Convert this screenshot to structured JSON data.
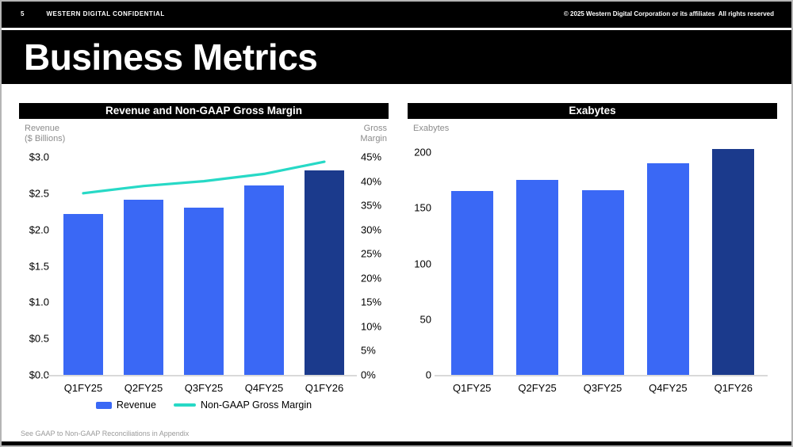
{
  "topbar": {
    "page_number": "5",
    "confidential": "WESTERN DIGITAL CONFIDENTIAL",
    "copyright": "© 2025 Western Digital Corporation or its affiliates  All rights reserved"
  },
  "slide_title": "Business Metrics",
  "footnote": "See GAAP to Non-GAAP Reconciliations in Appendix",
  "colors": {
    "bar_blue": "#3A68F5",
    "bar_navy": "#1B3A8C",
    "line_teal": "#27D9C6",
    "axis_line_gray": "#d9d9d9",
    "caption_gray": "#8c8c8c"
  },
  "chart_data": [
    {
      "type": "bar+line",
      "title": "Revenue and Non-GAAP Gross Margin",
      "categories": [
        "Q1FY25",
        "Q2FY25",
        "Q3FY25",
        "Q4FY25",
        "Q1FY26"
      ],
      "series": [
        {
          "name": "Revenue",
          "type": "bar",
          "unit": "$ Billions",
          "values": [
            2.22,
            2.41,
            2.3,
            2.61,
            2.82
          ]
        },
        {
          "name": "Non-GAAP Gross Margin",
          "type": "line",
          "unit": "%",
          "values": [
            37.5,
            39,
            40,
            41.5,
            44
          ]
        }
      ],
      "highlight_index": 4,
      "left_axis": {
        "label": "Revenue\n($ Billions)",
        "max": 3.0,
        "min": 0,
        "ticks": [
          "$3.0",
          "$2.5",
          "$2.0",
          "$1.5",
          "$1.0",
          "$0.5",
          "$0.0"
        ]
      },
      "right_axis": {
        "label": "Gross\nMargin",
        "max": 45,
        "min": 0,
        "ticks": [
          "45%",
          "40%",
          "35%",
          "30%",
          "25%",
          "20%",
          "15%",
          "10%",
          "5%",
          "0%"
        ]
      },
      "legend": [
        {
          "label": "Revenue",
          "swatch": "bar"
        },
        {
          "label": "Non-GAAP Gross Margin",
          "swatch": "line"
        }
      ],
      "grid": false,
      "legend_position": "bottom"
    },
    {
      "type": "bar",
      "title": "Exabytes",
      "categories": [
        "Q1FY25",
        "Q2FY25",
        "Q3FY25",
        "Q4FY25",
        "Q1FY26"
      ],
      "values": [
        165,
        175,
        166,
        190,
        203
      ],
      "highlight_index": 4,
      "left_axis": {
        "label": "Exabytes",
        "max": 200,
        "min": 0,
        "ticks": [
          "200",
          "150",
          "100",
          "50",
          "0"
        ]
      },
      "grid": false
    }
  ]
}
